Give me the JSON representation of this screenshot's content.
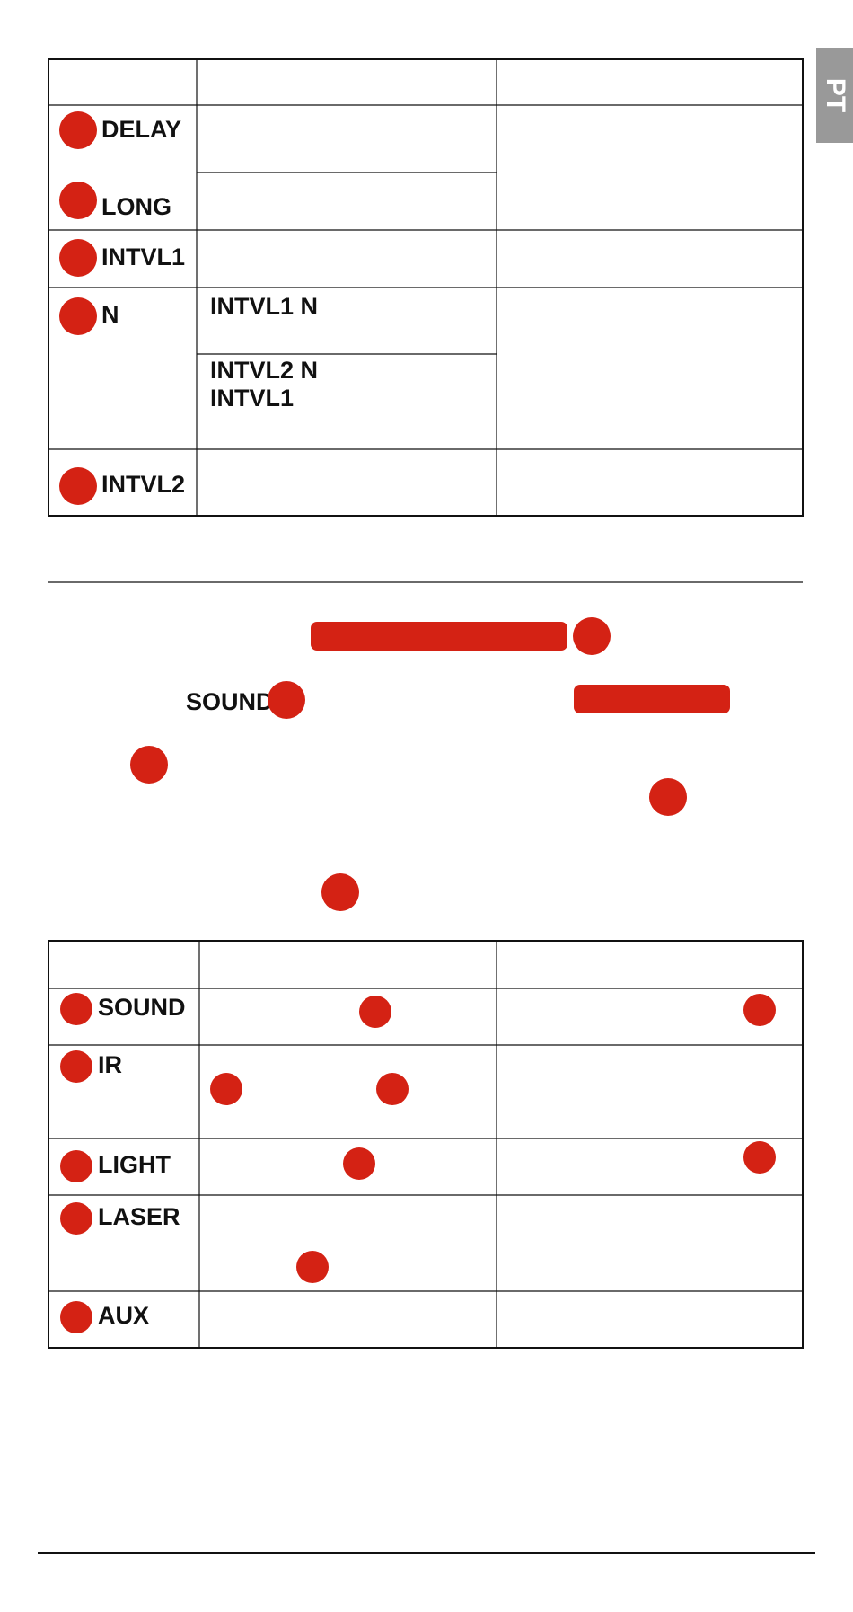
{
  "tab": "PT",
  "table1": {
    "rows": [
      "DELAY",
      "LONG",
      "INTVL1",
      "N",
      "INTVL2"
    ],
    "n_options": [
      "INTVL1 N",
      "INTVL2 N",
      "INTVL1"
    ]
  },
  "paragraph": {
    "words": [
      "SOUND"
    ]
  },
  "table2": {
    "rows": [
      "SOUND",
      "IR",
      "LIGHT",
      "LASER",
      "AUX"
    ]
  }
}
